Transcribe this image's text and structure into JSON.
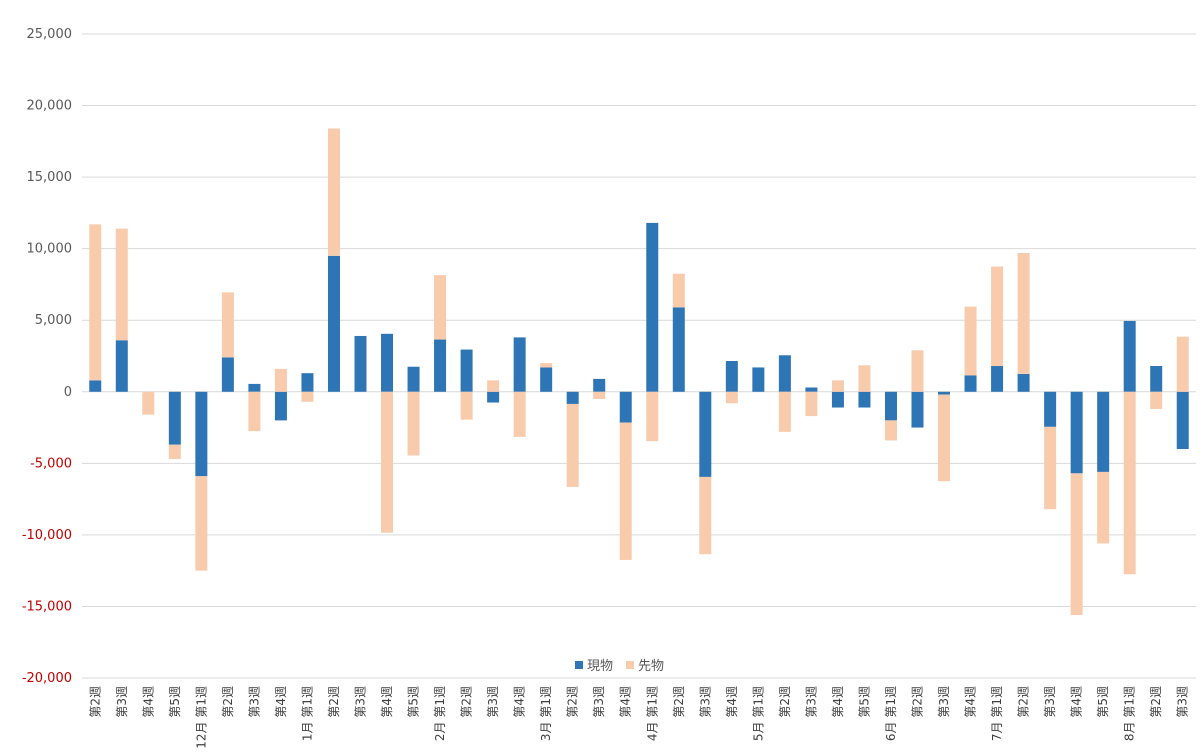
{
  "chart_data": {
    "type": "bar",
    "stacked": true,
    "colors": {
      "現物": "#2e75b6",
      "先物": "#f8cbad",
      "grid": "#d9d9d9",
      "negative_tick": "#c00000"
    },
    "ylim": [
      -20000,
      25000
    ],
    "yticks": [
      "-20,000",
      "-15,000",
      "-10,000",
      "-5,000",
      "0",
      "5,000",
      "10,000",
      "15,000",
      "20,000",
      "25,000"
    ],
    "ytick_values": [
      -20000,
      -15000,
      -10000,
      -5000,
      0,
      5000,
      10000,
      15000,
      20000,
      25000
    ],
    "grid": true,
    "legend_position": "bottom-center",
    "categories": [
      "第2週",
      "第3週",
      "第4週",
      "第5週",
      "12月 第1週",
      "第2週",
      "第3週",
      "第4週",
      "1月 第1週",
      "第2週",
      "第3週",
      "第4週",
      "第5週",
      "2月 第1週",
      "第2週",
      "第3週",
      "第4週",
      "3月 第1週",
      "第2週",
      "第3週",
      "第4週",
      "4月 第1週",
      "第2週",
      "第3週",
      "第4週",
      "5月 第1週",
      "第2週",
      "第3週",
      "第4週",
      "第5週",
      "6月 第1週",
      "第2週",
      "第3週",
      "第4週",
      "7月 第1週",
      "第2週",
      "第3週",
      "第4週",
      "第5週",
      "8月 第1週",
      "第2週",
      "第3週"
    ],
    "series": [
      {
        "name": "現物",
        "values": [
          800,
          3600,
          0,
          -3700,
          -5900,
          2400,
          550,
          -2000,
          1300,
          9500,
          3900,
          4050,
          1750,
          3650,
          2950,
          -750,
          3800,
          1700,
          -850,
          900,
          -2150,
          11800,
          5900,
          -5950,
          2150,
          1700,
          2550,
          300,
          -1100,
          -1100,
          -2000,
          -2500,
          -200,
          1150,
          1800,
          1250,
          -2450,
          -5700,
          -5600,
          4950,
          1800,
          -4000
        ]
      },
      {
        "name": "先物",
        "values": [
          10900,
          7800,
          -1600,
          -1000,
          -6600,
          4550,
          -2750,
          1600,
          -700,
          8900,
          0,
          -9850,
          -4450,
          4500,
          -1950,
          800,
          -3150,
          300,
          -5800,
          -500,
          -9600,
          -3450,
          2350,
          -5400,
          -800,
          0,
          -2800,
          -1700,
          800,
          1850,
          -1400,
          2900,
          -6050,
          4800,
          6950,
          8450,
          -5750,
          -9900,
          -5000,
          -12750,
          -1200,
          3850
        ]
      }
    ]
  }
}
